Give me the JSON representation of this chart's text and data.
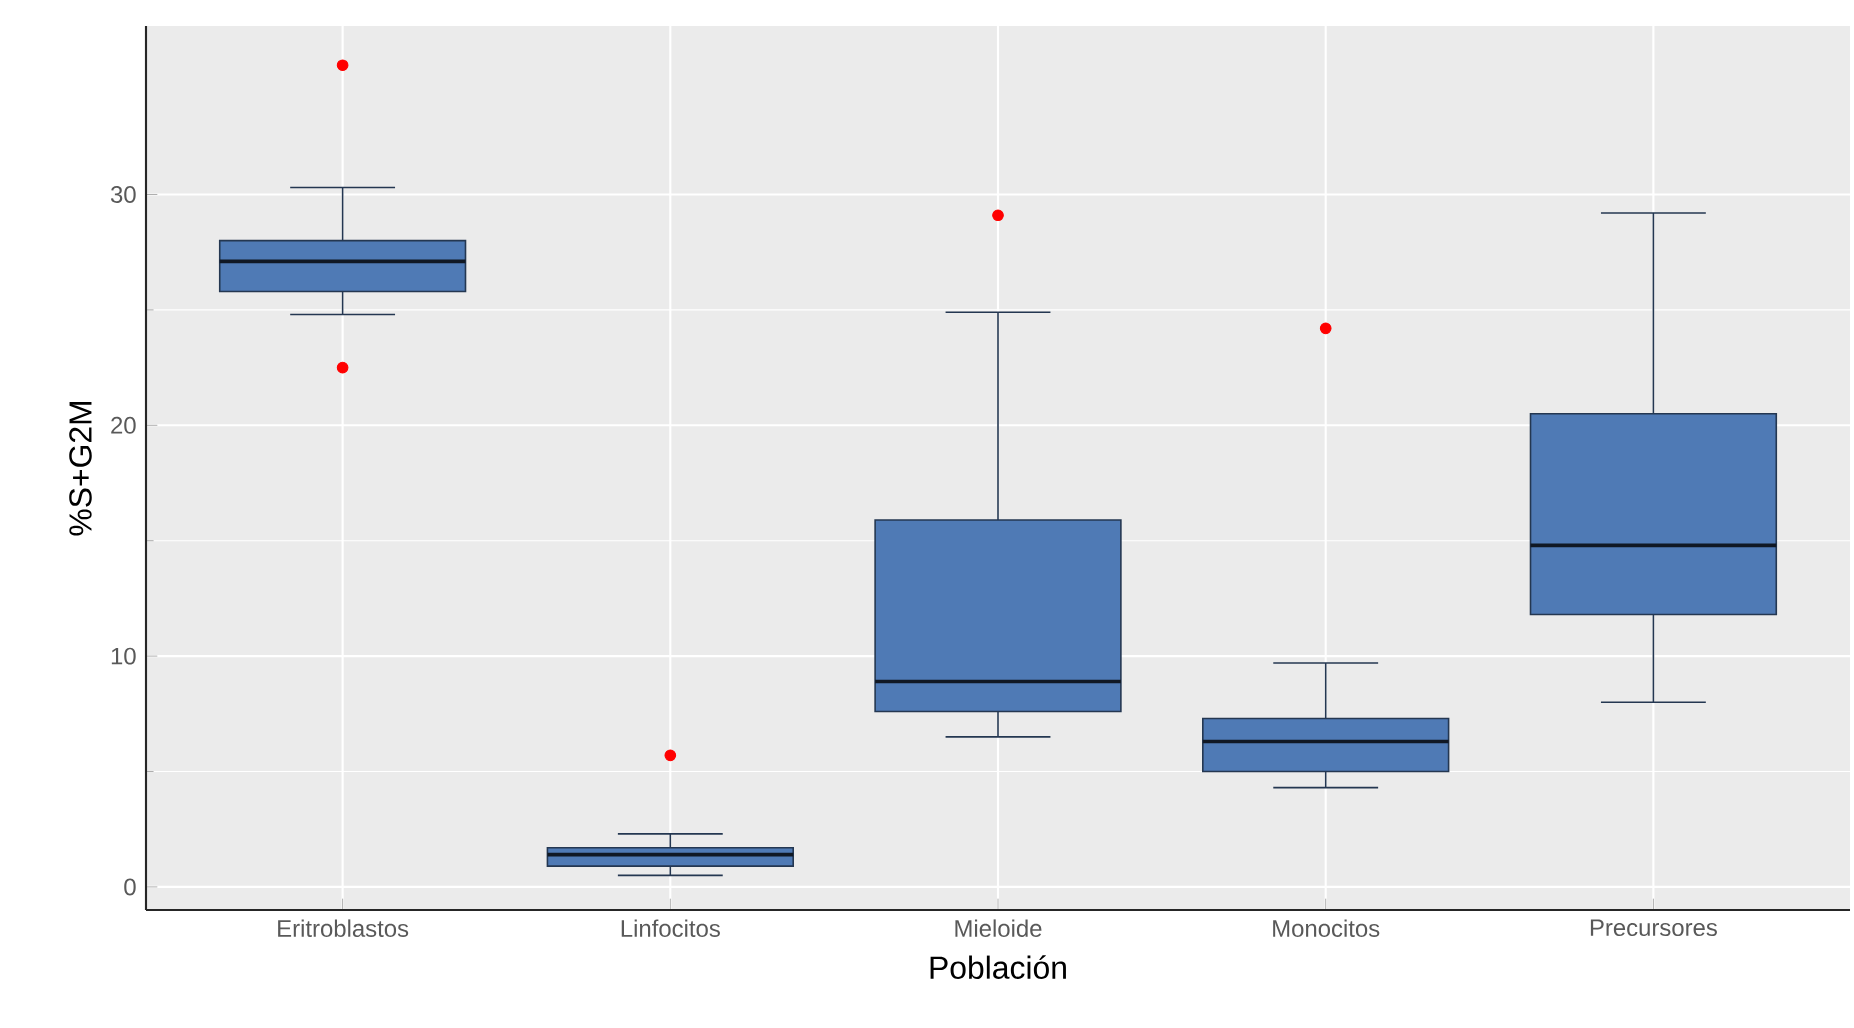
{
  "chart_data": {
    "type": "box",
    "xlabel": "Población",
    "ylabel": "%S+G2M",
    "categories": [
      "Eritroblastos",
      "Linfocitos",
      "Mieloide",
      "Monocitos",
      "Precursores"
    ],
    "color": "#4f7ab5",
    "boxes": [
      {
        "low": 24.8,
        "q1": 25.8,
        "median": 27.1,
        "q3": 28.0,
        "high": 30.3,
        "outliers": [
          35.6,
          22.5
        ]
      },
      {
        "low": 0.5,
        "q1": 0.9,
        "median": 1.4,
        "q3": 1.7,
        "high": 2.3,
        "outliers": [
          5.7
        ]
      },
      {
        "low": 6.5,
        "q1": 7.6,
        "median": 8.9,
        "q3": 15.9,
        "high": 24.9,
        "outliers": [
          29.1
        ]
      },
      {
        "low": 4.3,
        "q1": 5.0,
        "median": 6.3,
        "q3": 7.3,
        "high": 9.7,
        "outliers": [
          24.2
        ]
      },
      {
        "low": 8.0,
        "q1": 11.8,
        "median": 14.8,
        "q3": 20.5,
        "high": 29.2
      }
    ],
    "ylim": [
      -1.0,
      37.3
    ],
    "yticks": [
      0,
      10,
      20,
      30
    ],
    "grid": true
  }
}
